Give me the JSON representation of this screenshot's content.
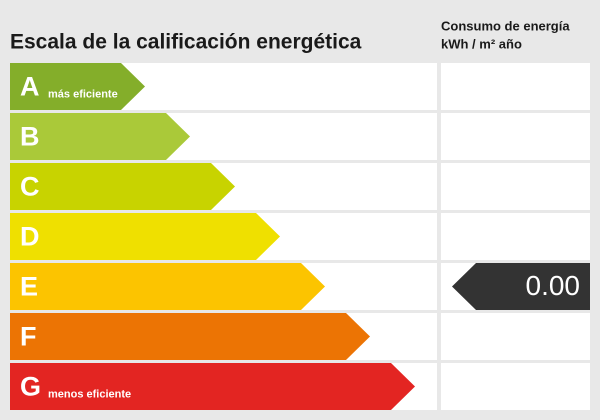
{
  "header": {
    "title": "Escala de la calificación energética",
    "consumption_title": "Consumo de energía",
    "consumption_unit": "kWh / m² año"
  },
  "rows": [
    {
      "letter": "A",
      "note": "más eficiente",
      "color": "#84ae2a"
    },
    {
      "letter": "B",
      "color": "#aac939"
    },
    {
      "letter": "C",
      "color": "#c8d300"
    },
    {
      "letter": "D",
      "color": "#efe000"
    },
    {
      "letter": "E",
      "color": "#fcc400",
      "value": "0.00"
    },
    {
      "letter": "F",
      "color": "#ec7404"
    },
    {
      "letter": "G",
      "note": "menos eficiente",
      "color": "#e32522"
    }
  ]
}
